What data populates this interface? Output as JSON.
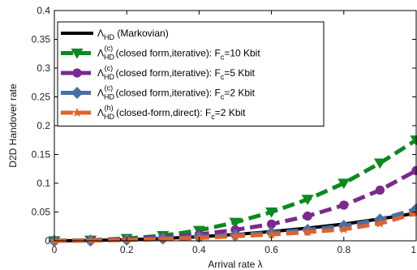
{
  "chart_data": {
    "type": "line",
    "xlabel": "Arrival rate λ",
    "ylabel": "D2D Handover rate",
    "xlim": [
      0,
      1
    ],
    "ylim": [
      0,
      0.4
    ],
    "x_ticks": [
      "0",
      "0.2",
      "0.4",
      "0.6",
      "0.8",
      "1"
    ],
    "y_ticks": [
      "0",
      "0.05",
      "0.1",
      "0.15",
      "0.2",
      "0.25",
      "0.3",
      "0.35",
      "0.4"
    ],
    "grid": false,
    "legend_position": "top-left",
    "series": [
      {
        "name": "Λ_HD (Markovian)",
        "legend": {
          "sym": "Λ",
          "sub": "HD",
          "sup": "",
          "rest": " (Markovian)"
        },
        "color": "#000000",
        "marker": "none",
        "dash": "solid",
        "x": [
          0,
          0.1,
          0.2,
          0.3,
          0.4,
          0.5,
          0.6,
          0.7,
          0.8,
          0.9,
          1.0
        ],
        "values": [
          0.0,
          0.0005,
          0.002,
          0.004,
          0.007,
          0.011,
          0.016,
          0.022,
          0.029,
          0.038,
          0.048
        ]
      },
      {
        "name": "Λ_HD^(c) (closed form,iterative): F_c=10 Kbit",
        "legend": {
          "sym": "Λ",
          "sub": "HD",
          "sup": "(c)",
          "rest": " (closed form,iterative): F",
          "rest_sub": "c",
          "rest2": "=10 Kbit"
        },
        "color": "#0a8a1f",
        "marker": "triangle-down",
        "dash": "dashed",
        "x": [
          0,
          0.1,
          0.2,
          0.3,
          0.4,
          0.5,
          0.6,
          0.7,
          0.8,
          0.9,
          1.0
        ],
        "values": [
          0.0,
          0.001,
          0.004,
          0.009,
          0.018,
          0.032,
          0.05,
          0.072,
          0.1,
          0.135,
          0.175
        ]
      },
      {
        "name": "Λ_HD^(c) (closed form,iterative): F_c=5 Kbit",
        "legend": {
          "sym": "Λ",
          "sub": "HD",
          "sup": "(c)",
          "rest": " (closed form,iterative): F",
          "rest_sub": "c",
          "rest2": "=5 Kbit"
        },
        "color": "#7a2a8e",
        "marker": "circle",
        "dash": "dashed",
        "x": [
          0,
          0.1,
          0.2,
          0.3,
          0.4,
          0.5,
          0.6,
          0.7,
          0.8,
          0.9,
          1.0
        ],
        "values": [
          0.0,
          0.0008,
          0.003,
          0.006,
          0.011,
          0.019,
          0.029,
          0.043,
          0.062,
          0.088,
          0.122
        ]
      },
      {
        "name": "Λ_HD^(c) (closed form,iterative): F_c=2 Kbit",
        "legend": {
          "sym": "Λ",
          "sub": "HD",
          "sup": "(c)",
          "rest": " (closed form,iterative): F",
          "rest_sub": "c",
          "rest2": "=2 Kbit"
        },
        "color": "#4a6fa5",
        "marker": "diamond",
        "dash": "dashed",
        "x": [
          0,
          0.1,
          0.2,
          0.3,
          0.4,
          0.5,
          0.6,
          0.7,
          0.8,
          0.9,
          1.0
        ],
        "values": [
          0.0,
          0.0005,
          0.002,
          0.004,
          0.007,
          0.01,
          0.014,
          0.019,
          0.026,
          0.037,
          0.055
        ]
      },
      {
        "name": "Λ_HD^(h) (closed-form,direct): F_c=2 Kbit",
        "legend": {
          "sym": "Λ",
          "sub": "HD",
          "sup": "(h)",
          "rest": " (closed-form,direct): F",
          "rest_sub": "c",
          "rest2": "=2 Kbit"
        },
        "color": "#e0622a",
        "marker": "star",
        "dash": "dashed",
        "x": [
          0,
          0.1,
          0.2,
          0.3,
          0.4,
          0.5,
          0.6,
          0.7,
          0.8,
          0.9,
          1.0
        ],
        "values": [
          0.0,
          0.0004,
          0.0015,
          0.003,
          0.005,
          0.008,
          0.011,
          0.015,
          0.02,
          0.03,
          0.048
        ]
      }
    ]
  }
}
